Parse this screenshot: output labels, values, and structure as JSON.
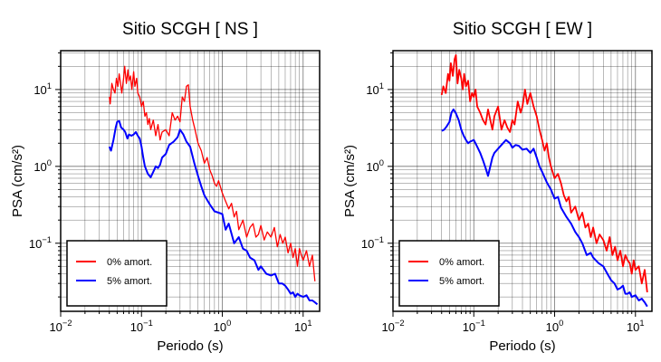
{
  "chart_data": [
    {
      "type": "line",
      "title": "Sitio SCGH [ NS ]",
      "xlabel": "Periodo (s)",
      "ylabel": "PSA (cm/s²)",
      "xscale": "log",
      "yscale": "log",
      "xlim": [
        0.01,
        16
      ],
      "ylim": [
        0.013,
        32
      ],
      "grid": true,
      "legend_position": "bottom-left",
      "x_ticks": [
        {
          "value": 0.01,
          "base": "10",
          "exp": "−2"
        },
        {
          "value": 0.1,
          "base": "10",
          "exp": "−1"
        },
        {
          "value": 1,
          "base": "10",
          "exp": "0"
        },
        {
          "value": 10,
          "base": "10",
          "exp": "1"
        }
      ],
      "y_ticks": [
        {
          "value": 10,
          "label": "10",
          "exp": "1"
        },
        {
          "value": 1,
          "label": "10",
          "exp": "0"
        },
        {
          "value": 0.1,
          "label": "10",
          "exp": "−1"
        }
      ],
      "series": [
        {
          "name": "0% amort.",
          "color": "#ff0000",
          "width": 1.3,
          "x": [
            0.04,
            0.041,
            0.043,
            0.045,
            0.047,
            0.049,
            0.051,
            0.053,
            0.055,
            0.057,
            0.06,
            0.062,
            0.065,
            0.068,
            0.07,
            0.073,
            0.076,
            0.08,
            0.083,
            0.087,
            0.09,
            0.095,
            0.1,
            0.105,
            0.11,
            0.115,
            0.12,
            0.125,
            0.13,
            0.14,
            0.15,
            0.16,
            0.17,
            0.18,
            0.2,
            0.22,
            0.24,
            0.26,
            0.28,
            0.3,
            0.32,
            0.34,
            0.36,
            0.38,
            0.4,
            0.43,
            0.46,
            0.5,
            0.55,
            0.6,
            0.65,
            0.7,
            0.75,
            0.8,
            0.85,
            0.9,
            1.0,
            1.1,
            1.2,
            1.3,
            1.4,
            1.5,
            1.6,
            1.8,
            2.0,
            2.2,
            2.4,
            2.6,
            2.8,
            3.0,
            3.3,
            3.6,
            4.0,
            4.4,
            4.8,
            5.2,
            5.6,
            6.0,
            6.5,
            7.0,
            7.5,
            8.0,
            8.5,
            9.0,
            9.5,
            10.0,
            11.0,
            12.0,
            13.0,
            14.0
          ],
          "y": [
            8,
            6.5,
            12,
            10,
            9,
            14,
            11,
            16,
            12,
            9,
            14,
            20,
            12,
            18,
            13,
            15,
            10,
            17,
            11,
            14,
            9,
            8,
            6,
            7,
            4.5,
            5,
            3.5,
            4.2,
            3,
            4,
            2.5,
            3.5,
            2.2,
            2.8,
            3,
            2.5,
            5,
            4,
            4.5,
            3.8,
            8,
            7,
            11,
            11.5,
            6,
            4,
            3,
            2,
            1.6,
            1.1,
            1.3,
            0.9,
            0.75,
            0.6,
            0.55,
            0.65,
            0.45,
            0.35,
            0.28,
            0.33,
            0.22,
            0.26,
            0.15,
            0.2,
            0.12,
            0.16,
            0.18,
            0.12,
            0.13,
            0.17,
            0.11,
            0.14,
            0.12,
            0.16,
            0.09,
            0.13,
            0.1,
            0.12,
            0.075,
            0.1,
            0.065,
            0.085,
            0.05,
            0.085,
            0.07,
            0.06,
            0.08,
            0.05,
            0.07,
            0.032
          ]
        },
        {
          "name": "5% amort.",
          "color": "#0000ff",
          "width": 2,
          "x": [
            0.04,
            0.042,
            0.045,
            0.048,
            0.05,
            0.053,
            0.056,
            0.06,
            0.063,
            0.067,
            0.07,
            0.075,
            0.08,
            0.085,
            0.09,
            0.095,
            0.1,
            0.105,
            0.11,
            0.12,
            0.13,
            0.14,
            0.15,
            0.16,
            0.17,
            0.18,
            0.2,
            0.22,
            0.25,
            0.28,
            0.3,
            0.33,
            0.36,
            0.4,
            0.45,
            0.5,
            0.55,
            0.6,
            0.7,
            0.8,
            0.9,
            1.0,
            1.1,
            1.2,
            1.4,
            1.6,
            1.8,
            2.0,
            2.2,
            2.5,
            2.8,
            3.0,
            3.5,
            4.0,
            4.5,
            5.0,
            5.5,
            6.0,
            6.5,
            7.0,
            7.5,
            8.0,
            8.5,
            9.0,
            10.0,
            11.0,
            12.0,
            13.0,
            14.0,
            15.0
          ],
          "y": [
            1.8,
            1.6,
            2.2,
            3.2,
            3.8,
            3.9,
            3.2,
            3.0,
            2.8,
            2.3,
            2.6,
            2.5,
            2.6,
            2.8,
            2.5,
            2.3,
            1.8,
            1.3,
            1.0,
            0.8,
            0.72,
            0.85,
            1.0,
            0.95,
            1.05,
            1.3,
            1.45,
            1.9,
            2.1,
            2.4,
            3.0,
            2.6,
            2.1,
            1.8,
            1.1,
            0.75,
            0.55,
            0.42,
            0.32,
            0.26,
            0.25,
            0.24,
            0.15,
            0.18,
            0.1,
            0.12,
            0.085,
            0.08,
            0.065,
            0.06,
            0.045,
            0.05,
            0.04,
            0.038,
            0.04,
            0.03,
            0.03,
            0.028,
            0.025,
            0.022,
            0.023,
            0.02,
            0.022,
            0.021,
            0.02,
            0.021,
            0.018,
            0.018,
            0.017,
            0.016
          ]
        }
      ]
    },
    {
      "type": "line",
      "title": "Sitio SCGH [ EW ]",
      "xlabel": "Periodo (s)",
      "ylabel": "PSA (cm/s²)",
      "xscale": "log",
      "yscale": "log",
      "xlim": [
        0.01,
        16
      ],
      "ylim": [
        0.013,
        32
      ],
      "grid": true,
      "legend_position": "bottom-left",
      "x_ticks": [
        {
          "value": 0.01,
          "base": "10",
          "exp": "−2"
        },
        {
          "value": 0.1,
          "base": "10",
          "exp": "−1"
        },
        {
          "value": 1,
          "base": "10",
          "exp": "0"
        },
        {
          "value": 10,
          "base": "10",
          "exp": "1"
        }
      ],
      "y_ticks": [
        {
          "value": 10,
          "label": "10",
          "exp": "1"
        },
        {
          "value": 1,
          "label": "10",
          "exp": "0"
        },
        {
          "value": 0.1,
          "label": "10",
          "exp": "−1"
        }
      ],
      "series": [
        {
          "name": "0% amort.",
          "color": "#ff0000",
          "width": 1.8,
          "x": [
            0.04,
            0.042,
            0.045,
            0.048,
            0.05,
            0.052,
            0.055,
            0.058,
            0.06,
            0.063,
            0.066,
            0.07,
            0.073,
            0.076,
            0.08,
            0.085,
            0.09,
            0.095,
            0.1,
            0.105,
            0.11,
            0.12,
            0.13,
            0.14,
            0.15,
            0.16,
            0.17,
            0.18,
            0.2,
            0.22,
            0.24,
            0.26,
            0.28,
            0.3,
            0.32,
            0.35,
            0.38,
            0.4,
            0.43,
            0.46,
            0.5,
            0.55,
            0.6,
            0.65,
            0.7,
            0.75,
            0.8,
            0.85,
            0.9,
            1.0,
            1.1,
            1.2,
            1.3,
            1.4,
            1.5,
            1.6,
            1.8,
            2.0,
            2.2,
            2.4,
            2.6,
            2.8,
            3.0,
            3.3,
            3.6,
            4.0,
            4.4,
            4.8,
            5.2,
            5.6,
            6.0,
            6.5,
            7.0,
            7.5,
            8.0,
            8.5,
            9.0,
            9.5,
            10.0,
            11.0,
            12.0,
            13.0,
            14.0
          ],
          "y": [
            8.5,
            11,
            9,
            16,
            13,
            22,
            15,
            25,
            28,
            12,
            18,
            14,
            10,
            16,
            11,
            13,
            7,
            9,
            8,
            10,
            6,
            5,
            4,
            3.5,
            5.5,
            4,
            3,
            4.5,
            6,
            3,
            4,
            3.2,
            2.8,
            4,
            3.5,
            7,
            5,
            6,
            10,
            6.5,
            9,
            6,
            4.5,
            3,
            2.2,
            1.6,
            2,
            1.3,
            1.0,
            0.7,
            0.8,
            0.6,
            0.42,
            0.35,
            0.4,
            0.25,
            0.3,
            0.2,
            0.25,
            0.16,
            0.18,
            0.12,
            0.16,
            0.1,
            0.13,
            0.11,
            0.08,
            0.12,
            0.07,
            0.09,
            0.06,
            0.08,
            0.05,
            0.07,
            0.06,
            0.055,
            0.04,
            0.06,
            0.045,
            0.05,
            0.03,
            0.045,
            0.023
          ]
        },
        {
          "name": "5% amort.",
          "color": "#0000ff",
          "width": 2,
          "x": [
            0.04,
            0.043,
            0.046,
            0.05,
            0.053,
            0.056,
            0.06,
            0.065,
            0.07,
            0.075,
            0.08,
            0.085,
            0.09,
            0.1,
            0.11,
            0.12,
            0.13,
            0.14,
            0.15,
            0.16,
            0.17,
            0.18,
            0.2,
            0.22,
            0.25,
            0.28,
            0.3,
            0.33,
            0.36,
            0.4,
            0.45,
            0.5,
            0.55,
            0.6,
            0.65,
            0.7,
            0.8,
            0.9,
            1.0,
            1.1,
            1.2,
            1.4,
            1.6,
            1.8,
            2.0,
            2.2,
            2.5,
            2.8,
            3.0,
            3.5,
            4.0,
            4.5,
            5.0,
            5.5,
            6.0,
            6.5,
            7.0,
            7.5,
            8.0,
            8.5,
            9.0,
            10.0,
            11.0,
            12.0,
            13.0,
            14.0
          ],
          "y": [
            2.9,
            3.0,
            3.3,
            3.8,
            5.0,
            5.5,
            4.9,
            4.0,
            3.0,
            2.5,
            2.2,
            2.0,
            2.1,
            2.2,
            1.8,
            1.5,
            1.2,
            0.95,
            0.75,
            1.0,
            1.3,
            1.5,
            1.7,
            1.9,
            2.2,
            2.0,
            1.75,
            1.9,
            1.85,
            1.65,
            1.7,
            1.5,
            1.7,
            1.3,
            1.0,
            0.85,
            0.62,
            0.5,
            0.38,
            0.4,
            0.29,
            0.22,
            0.18,
            0.14,
            0.12,
            0.1,
            0.07,
            0.075,
            0.065,
            0.055,
            0.05,
            0.04,
            0.033,
            0.03,
            0.025,
            0.026,
            0.028,
            0.022,
            0.022,
            0.023,
            0.02,
            0.021,
            0.018,
            0.019,
            0.017,
            0.015
          ]
        }
      ]
    }
  ]
}
